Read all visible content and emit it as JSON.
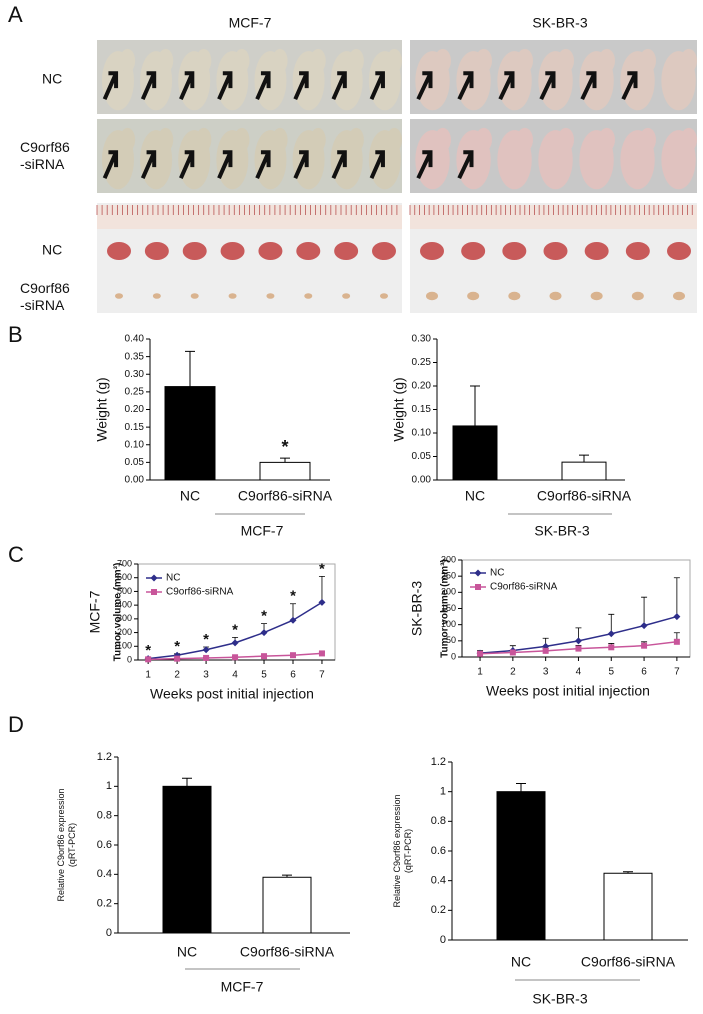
{
  "panel_labels": [
    "A",
    "B",
    "C",
    "D"
  ],
  "photo_panel": {
    "columns": [
      "MCF-7",
      "SK-BR-3"
    ],
    "rows": [
      "NC",
      "C9orf86\n-siRNA",
      "NC",
      "C9orf86\n-siRNA"
    ]
  },
  "chart_data": [
    {
      "type": "bar",
      "ylabel": "Weight (g)",
      "xlabel": "MCF-7",
      "categories": [
        "NC",
        "C9orf86-siRNA"
      ],
      "values": [
        0.265,
        0.05
      ],
      "errors": [
        0.1,
        0.012
      ],
      "colors": [
        "#000000",
        "#ffffff"
      ],
      "ylim": [
        0,
        0.4
      ],
      "yticks": [
        {
          "value": 0,
          "label": "0.00"
        },
        {
          "value": 0.05,
          "label": "0.05"
        },
        {
          "value": 0.1,
          "label": "0.10"
        },
        {
          "value": 0.15,
          "label": "0.15"
        },
        {
          "value": 0.2,
          "label": "0.20"
        },
        {
          "value": 0.25,
          "label": "0.25"
        },
        {
          "value": 0.3,
          "label": "0.30"
        },
        {
          "value": 0.35,
          "label": "0.35"
        },
        {
          "value": 0.4,
          "label": "0.40"
        }
      ],
      "annotations": [
        {
          "text": "*",
          "category": "C9orf86-siRNA"
        }
      ]
    },
    {
      "type": "bar",
      "ylabel": "Weight (g)",
      "xlabel": "SK-BR-3",
      "categories": [
        "NC",
        "C9orf86-siRNA"
      ],
      "values": [
        0.115,
        0.038
      ],
      "errors": [
        0.085,
        0.015
      ],
      "colors": [
        "#000000",
        "#ffffff"
      ],
      "ylim": [
        0,
        0.3
      ],
      "yticks": [
        {
          "value": 0,
          "label": "0.00"
        },
        {
          "value": 0.05,
          "label": "0.05"
        },
        {
          "value": 0.1,
          "label": "0.10"
        },
        {
          "value": 0.15,
          "label": "0.15"
        },
        {
          "value": 0.2,
          "label": "0.20"
        },
        {
          "value": 0.25,
          "label": "0.25"
        },
        {
          "value": 0.3,
          "label": "0.30"
        }
      ]
    },
    {
      "type": "line",
      "side_label": "MCF-7",
      "ylabel": "Tumor volume (mm³)",
      "xlabel": "Weeks post initial injection",
      "x": [
        1,
        2,
        3,
        4,
        5,
        6,
        7
      ],
      "xlim": [
        0.65,
        7.45
      ],
      "xticks": [
        1,
        2,
        3,
        4,
        5,
        6,
        7
      ],
      "ylim": [
        0,
        700
      ],
      "yticks": [
        0,
        100,
        200,
        300,
        400,
        500,
        600,
        700
      ],
      "legend": "top-left",
      "series": [
        {
          "name": "NC",
          "color": "#2e2e8a",
          "marker": "diamond",
          "values": [
            10,
            35,
            75,
            125,
            200,
            290,
            420
          ],
          "errors": [
            5,
            10,
            20,
            40,
            65,
            120,
            190
          ]
        },
        {
          "name": "C9orf86-siRNA",
          "color": "#c8559a",
          "marker": "square",
          "values": [
            5,
            10,
            15,
            20,
            28,
            35,
            48
          ],
          "errors": [
            2,
            3,
            4,
            5,
            6,
            7,
            10
          ]
        }
      ],
      "annotations": [
        {
          "text": "*",
          "x": 1
        },
        {
          "text": "*",
          "x": 2
        },
        {
          "text": "*",
          "x": 3
        },
        {
          "text": "*",
          "x": 4
        },
        {
          "text": "*",
          "x": 5
        },
        {
          "text": "*",
          "x": 6
        },
        {
          "text": "*",
          "x": 7
        }
      ]
    },
    {
      "type": "line",
      "side_label": "SK-BR-3",
      "ylabel": "Tumor volume (mm³)",
      "xlabel": "Weeks post initial injection",
      "x": [
        1,
        2,
        3,
        4,
        5,
        6,
        7
      ],
      "xlim": [
        0.45,
        7.4
      ],
      "xticks": [
        1,
        2,
        3,
        4,
        5,
        6,
        7
      ],
      "ylim": [
        0,
        300
      ],
      "yticks": [
        0,
        50,
        100,
        150,
        200,
        250,
        300
      ],
      "legend": "top-left",
      "series": [
        {
          "name": "NC",
          "color": "#2e2e8a",
          "marker": "diamond",
          "values": [
            12,
            20,
            33,
            50,
            72,
            97,
            125
          ],
          "errors": [
            8,
            15,
            25,
            40,
            60,
            88,
            120
          ]
        },
        {
          "name": "C9orf86-siRNA",
          "color": "#c8559a",
          "marker": "square",
          "values": [
            10,
            14,
            19,
            26,
            30,
            35,
            47
          ],
          "errors": [
            3,
            6,
            8,
            10,
            12,
            12,
            28
          ]
        }
      ]
    },
    {
      "type": "bar",
      "ylabel": "Relative C9orf86 expression\n(qRT-PCR)",
      "xlabel": "MCF-7",
      "categories": [
        "NC",
        "C9orf86-siRNA"
      ],
      "values": [
        1,
        0.38
      ],
      "errors": [
        0.055,
        0.015
      ],
      "colors": [
        "#000000",
        "#ffffff"
      ],
      "ylim": [
        0,
        1.2
      ],
      "yticks": [
        0,
        0.2,
        0.4,
        0.6,
        0.8,
        1,
        1.2
      ]
    },
    {
      "type": "bar",
      "ylabel": "Relative C9orf86 expression\n(qRT-PCR)",
      "xlabel": "SK-BR-3",
      "categories": [
        "NC",
        "C9orf86-siRNA"
      ],
      "values": [
        1,
        0.45
      ],
      "errors": [
        0.055,
        0.01
      ],
      "colors": [
        "#000000",
        "#ffffff"
      ],
      "ylim": [
        0,
        1.2
      ],
      "yticks": [
        0,
        0.2,
        0.4,
        0.6,
        0.8,
        1,
        1.2
      ]
    }
  ]
}
